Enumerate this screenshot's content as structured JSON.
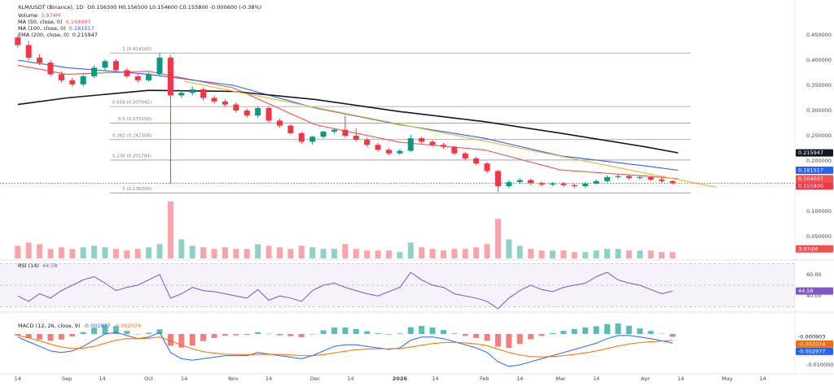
{
  "chart_data": [
    {
      "type": "candlestick",
      "title": "XLM/USDT (Binance), 1D",
      "ohlc": "O0.156300 H0.156500 L0.154600 C0.155800 -0.000600 (-0.38%)",
      "x": [
        0,
        4,
        8,
        12,
        16,
        20,
        24,
        28,
        32,
        36,
        40,
        44,
        48,
        52,
        56,
        60,
        64,
        68,
        72,
        76,
        80,
        84,
        88,
        92,
        96,
        100,
        104,
        108,
        112,
        116,
        120,
        124,
        128,
        132,
        136,
        140,
        144,
        148,
        152,
        156,
        160,
        164,
        168,
        172,
        176,
        180,
        184,
        188,
        192,
        196,
        200,
        204,
        208,
        212,
        216,
        220,
        224,
        228,
        232,
        236,
        240
      ],
      "open": [
        0.445,
        0.43,
        0.405,
        0.395,
        0.372,
        0.36,
        0.352,
        0.368,
        0.385,
        0.398,
        0.38,
        0.368,
        0.36,
        0.372,
        0.405,
        0.33,
        0.335,
        0.342,
        0.325,
        0.318,
        0.312,
        0.3,
        0.29,
        0.305,
        0.28,
        0.27,
        0.255,
        0.238,
        0.248,
        0.258,
        0.262,
        0.25,
        0.242,
        0.232,
        0.222,
        0.215,
        0.22,
        0.245,
        0.238,
        0.232,
        0.228,
        0.215,
        0.205,
        0.195,
        0.18,
        0.15,
        0.158,
        0.162,
        0.156,
        0.153,
        0.155,
        0.152,
        0.15,
        0.155,
        0.16,
        0.168,
        0.17,
        0.166,
        0.168,
        0.163,
        0.16
      ],
      "high": [
        0.448,
        0.438,
        0.412,
        0.4,
        0.378,
        0.365,
        0.372,
        0.39,
        0.402,
        0.402,
        0.384,
        0.372,
        0.376,
        0.414,
        0.41,
        0.34,
        0.348,
        0.346,
        0.33,
        0.322,
        0.316,
        0.304,
        0.308,
        0.308,
        0.284,
        0.273,
        0.258,
        0.25,
        0.26,
        0.264,
        0.29,
        0.265,
        0.246,
        0.236,
        0.226,
        0.224,
        0.252,
        0.248,
        0.242,
        0.236,
        0.23,
        0.218,
        0.208,
        0.198,
        0.182,
        0.162,
        0.166,
        0.165,
        0.16,
        0.158,
        0.158,
        0.155,
        0.158,
        0.163,
        0.171,
        0.174,
        0.172,
        0.171,
        0.17,
        0.166,
        0.162
      ],
      "low": [
        0.425,
        0.4,
        0.39,
        0.368,
        0.355,
        0.347,
        0.348,
        0.364,
        0.38,
        0.376,
        0.364,
        0.355,
        0.357,
        0.368,
        0.155,
        0.325,
        0.33,
        0.32,
        0.314,
        0.308,
        0.296,
        0.286,
        0.286,
        0.276,
        0.266,
        0.252,
        0.234,
        0.232,
        0.244,
        0.254,
        0.246,
        0.238,
        0.228,
        0.218,
        0.211,
        0.212,
        0.217,
        0.234,
        0.229,
        0.224,
        0.212,
        0.202,
        0.192,
        0.176,
        0.138,
        0.146,
        0.154,
        0.152,
        0.149,
        0.15,
        0.148,
        0.146,
        0.147,
        0.153,
        0.157,
        0.164,
        0.163,
        0.163,
        0.16,
        0.157,
        0.153
      ],
      "close": [
        0.43,
        0.405,
        0.395,
        0.372,
        0.36,
        0.352,
        0.368,
        0.385,
        0.398,
        0.38,
        0.368,
        0.36,
        0.372,
        0.405,
        0.33,
        0.335,
        0.342,
        0.325,
        0.318,
        0.312,
        0.3,
        0.29,
        0.305,
        0.28,
        0.27,
        0.255,
        0.238,
        0.248,
        0.258,
        0.262,
        0.25,
        0.242,
        0.232,
        0.222,
        0.215,
        0.22,
        0.245,
        0.238,
        0.232,
        0.228,
        0.215,
        0.205,
        0.195,
        0.18,
        0.15,
        0.158,
        0.162,
        0.156,
        0.153,
        0.155,
        0.152,
        0.15,
        0.155,
        0.16,
        0.168,
        0.17,
        0.166,
        0.168,
        0.163,
        0.16,
        0.1558
      ],
      "up_color": "#089981",
      "down_color": "#f23645",
      "series": [
        {
          "name": "MA (50, close, 0)",
          "color": "#ef5350",
          "x": [
            0,
            18,
            48,
            79,
            109,
            140,
            171,
            199,
            230,
            242
          ],
          "values": [
            0.39,
            0.372,
            0.378,
            0.345,
            0.272,
            0.237,
            0.222,
            0.182,
            0.17,
            0.164697
          ]
        },
        {
          "name": "MA (100, close, 0)",
          "color": "#2962ff",
          "x": [
            0,
            18,
            48,
            79,
            109,
            140,
            171,
            199,
            230,
            242
          ],
          "values": [
            0.4,
            0.385,
            0.372,
            0.35,
            0.305,
            0.272,
            0.245,
            0.21,
            0.19,
            0.181517
          ]
        },
        {
          "name": "EMA (200, close, 0)",
          "color": "#131722",
          "x": [
            0,
            18,
            48,
            79,
            109,
            140,
            171,
            199,
            230,
            242
          ],
          "values": [
            0.312,
            0.325,
            0.34,
            0.338,
            0.322,
            0.298,
            0.278,
            0.255,
            0.228,
            0.215947
          ]
        }
      ],
      "trend_line": {
        "color": "#f0b429",
        "x": [
          61,
          256
        ],
        "values": [
          0.358,
          0.148
        ]
      },
      "fib_levels": [
        {
          "value": 0.4141,
          "label": "1 (0.414100)"
        },
        {
          "value": 0.307942,
          "label": "0.618 (0.307942)"
        },
        {
          "value": 0.27515,
          "label": "0.5 (0.275150)"
        },
        {
          "value": 0.242358,
          "label": "0.382 (0.242358)"
        },
        {
          "value": 0.201784,
          "label": "0.236 (0.201784)"
        },
        {
          "value": 0.1362,
          "label": "0 (0.136200)"
        }
      ],
      "price_badge": {
        "value": 0.1558,
        "label": "0.155800"
      },
      "xlim": [
        -6.5,
        284.5
      ],
      "xticks": [
        {
          "value": 0,
          "label": "14"
        },
        {
          "value": 18,
          "label": "Sep"
        },
        {
          "value": 31,
          "label": "14"
        },
        {
          "value": 48,
          "label": "Oct"
        },
        {
          "value": 61,
          "label": "14"
        },
        {
          "value": 79,
          "label": "Nov"
        },
        {
          "value": 92,
          "label": "14"
        },
        {
          "value": 109,
          "label": "Dec"
        },
        {
          "value": 122,
          "label": "14"
        },
        {
          "value": 140,
          "label": "2026"
        },
        {
          "value": 153,
          "label": "14"
        },
        {
          "value": 171,
          "label": "Feb"
        },
        {
          "value": 184,
          "label": "14"
        },
        {
          "value": 199,
          "label": "Mar"
        },
        {
          "value": 212,
          "label": "14"
        },
        {
          "value": 230,
          "label": "Apr"
        },
        {
          "value": 243,
          "label": "14"
        },
        {
          "value": 260,
          "label": "May"
        },
        {
          "value": 273,
          "label": "14"
        }
      ],
      "ylim": [
        0.0065,
        0.471
      ],
      "yticks": [
        {
          "value": 0.45,
          "label": "0.450000"
        },
        {
          "value": 0.4,
          "label": "0.400000"
        },
        {
          "value": 0.35,
          "label": "0.350000"
        },
        {
          "value": 0.3,
          "label": "0.300000"
        },
        {
          "value": 0.25,
          "label": "0.250000"
        },
        {
          "value": 0.2,
          "label": "0.200000"
        },
        {
          "value": 0.1,
          "label": "0.100000"
        },
        {
          "value": 0.05,
          "label": "0.050000"
        }
      ]
    },
    {
      "type": "bar",
      "name": "Volume",
      "color": "#ef5350",
      "x": [
        0,
        4,
        8,
        12,
        16,
        20,
        24,
        28,
        32,
        36,
        40,
        44,
        48,
        52,
        56,
        60,
        64,
        68,
        72,
        76,
        80,
        84,
        88,
        92,
        96,
        100,
        104,
        108,
        112,
        116,
        120,
        124,
        128,
        132,
        136,
        140,
        144,
        148,
        152,
        156,
        160,
        164,
        168,
        172,
        176,
        180,
        184,
        188,
        192,
        196,
        200,
        204,
        208,
        212,
        216,
        220,
        224,
        228,
        232,
        236,
        240
      ],
      "values": [
        8,
        10,
        9,
        6,
        7,
        6,
        7,
        8,
        7,
        6,
        5,
        6,
        7,
        9,
        36,
        12,
        8,
        7,
        6,
        7,
        6,
        6,
        9,
        8,
        7,
        6,
        8,
        7,
        6,
        6,
        9,
        6,
        5,
        5,
        5,
        4,
        10,
        7,
        6,
        5,
        6,
        6,
        7,
        9,
        25,
        12,
        8,
        6,
        5,
        5,
        5,
        4,
        4,
        5,
        6,
        6,
        5,
        5,
        5,
        4,
        3.974
      ],
      "value_labels": [
        null,
        null,
        null,
        null,
        null,
        null,
        null,
        null,
        null,
        null,
        null,
        null,
        null,
        null,
        null,
        null,
        null,
        null,
        null,
        null,
        null,
        null,
        null,
        null,
        null,
        null,
        null,
        null,
        null,
        null,
        null,
        null,
        null,
        null,
        null,
        null,
        null,
        null,
        null,
        null,
        null,
        null,
        null,
        null,
        null,
        null,
        null,
        null,
        null,
        null,
        null,
        null,
        null,
        null,
        null,
        null,
        null,
        null,
        null,
        null,
        "3.974M"
      ],
      "ylim": [
        0,
        40
      ]
    },
    {
      "type": "line",
      "title": "RSI (14)",
      "color": "#7e57c2",
      "x": [
        0,
        4,
        8,
        12,
        16,
        20,
        24,
        28,
        32,
        36,
        40,
        44,
        48,
        52,
        56,
        60,
        64,
        68,
        72,
        76,
        80,
        84,
        88,
        92,
        96,
        100,
        104,
        108,
        112,
        116,
        120,
        124,
        128,
        132,
        136,
        140,
        144,
        148,
        152,
        156,
        160,
        164,
        168,
        172,
        176,
        180,
        184,
        188,
        192,
        196,
        200,
        204,
        208,
        212,
        216,
        220,
        224,
        228,
        232,
        236,
        240
      ],
      "values": [
        40,
        35,
        42,
        38,
        45,
        50,
        55,
        58,
        52,
        45,
        48,
        50,
        55,
        60,
        38,
        42,
        48,
        45,
        44,
        42,
        40,
        38,
        46,
        36,
        40,
        38,
        35,
        45,
        50,
        52,
        48,
        45,
        42,
        40,
        44,
        48,
        62,
        55,
        50,
        48,
        42,
        40,
        38,
        35,
        28,
        38,
        45,
        50,
        46,
        44,
        48,
        50,
        52,
        58,
        62,
        55,
        52,
        50,
        46,
        42,
        44.58
      ],
      "levels": [
        70,
        50,
        30
      ],
      "ylim": [
        28,
        72
      ],
      "yticks": [
        {
          "value": 60,
          "label": "60.00"
        },
        {
          "value": 40,
          "label": "40.00"
        }
      ]
    },
    {
      "type": "macd",
      "title": "MACD (12, 26, close, 9)",
      "x": [
        0,
        4,
        8,
        12,
        16,
        20,
        24,
        28,
        32,
        36,
        40,
        44,
        48,
        52,
        56,
        60,
        64,
        68,
        72,
        76,
        80,
        84,
        88,
        92,
        96,
        100,
        104,
        108,
        112,
        116,
        120,
        124,
        128,
        132,
        136,
        140,
        144,
        148,
        152,
        156,
        160,
        164,
        168,
        172,
        176,
        180,
        184,
        188,
        192,
        196,
        200,
        204,
        208,
        212,
        216,
        220,
        224,
        228,
        232,
        236,
        240
      ],
      "histogram": [
        -0.0005,
        -0.0013,
        -0.0018,
        -0.0022,
        -0.0018,
        -0.0008,
        0.0006,
        0.002,
        0.003,
        0.0025,
        0.001,
        0,
        0.0004,
        0.0015,
        -0.0038,
        -0.0044,
        -0.0037,
        -0.0023,
        -0.0013,
        -0.0005,
        -0.0004,
        -0.0003,
        0.0006,
        0.0001,
        -0.0004,
        -0.0007,
        -0.001,
        0,
        0.0012,
        0.0021,
        0.0021,
        0.0016,
        0.0009,
        0.0003,
        -0.0002,
        0.0002,
        0.0022,
        0.0026,
        0.0021,
        0.0013,
        0.0002,
        -0.0006,
        -0.0013,
        -0.0022,
        -0.0041,
        -0.0045,
        -0.0032,
        -0.0017,
        -0.0006,
        0.0003,
        0.001,
        0.0016,
        0.0021,
        0.0025,
        0.0032,
        0.0034,
        0.0027,
        0.0018,
        0.001,
        0.0001,
        -0.000903
      ],
      "histogram_colors": [
        "#26a69a",
        "#ef5350"
      ],
      "series": [
        {
          "color": "#2962ff",
          "values": [
            -0.001,
            -0.0025,
            -0.004,
            -0.0055,
            -0.006,
            -0.0055,
            -0.004,
            -0.002,
            0,
            0.0005,
            -0.0005,
            -0.0015,
            -0.001,
            0.0005,
            -0.006,
            -0.008,
            -0.0085,
            -0.008,
            -0.0075,
            -0.007,
            -0.007,
            -0.007,
            -0.006,
            -0.0065,
            -0.007,
            -0.0075,
            -0.008,
            -0.007,
            -0.0055,
            -0.004,
            -0.0035,
            -0.0035,
            -0.004,
            -0.0045,
            -0.005,
            -0.0045,
            -0.002,
            -0.001,
            -0.001,
            -0.0015,
            -0.0025,
            -0.0035,
            -0.0045,
            -0.006,
            -0.009,
            -0.0105,
            -0.01,
            -0.009,
            -0.008,
            -0.007,
            -0.006,
            -0.005,
            -0.004,
            -0.003,
            -0.0015,
            -0.0005,
            -0.0005,
            -0.001,
            -0.0015,
            -0.0022,
            -0.002977
          ]
        },
        {
          "color": "#ff6d00",
          "values": [
            -0.0005,
            -0.0012,
            -0.0022,
            -0.0033,
            -0.0042,
            -0.0047,
            -0.0046,
            -0.004,
            -0.003,
            -0.002,
            -0.0015,
            -0.0015,
            -0.0014,
            -0.001,
            -0.0022,
            -0.0036,
            -0.0048,
            -0.0057,
            -0.0062,
            -0.0065,
            -0.0066,
            -0.0067,
            -0.0066,
            -0.0066,
            -0.0066,
            -0.0068,
            -0.007,
            -0.007,
            -0.0067,
            -0.0061,
            -0.0056,
            -0.0051,
            -0.0049,
            -0.0048,
            -0.0048,
            -0.0047,
            -0.0042,
            -0.0036,
            -0.0031,
            -0.0028,
            -0.0027,
            -0.0029,
            -0.0032,
            -0.0038,
            -0.0049,
            -0.006,
            -0.0068,
            -0.0073,
            -0.0074,
            -0.0073,
            -0.007,
            -0.0066,
            -0.0061,
            -0.0055,
            -0.0047,
            -0.0039,
            -0.0032,
            -0.0028,
            -0.0025,
            -0.0023,
            -0.002074
          ]
        }
      ],
      "ylim": [
        -0.01237,
        0.00605
      ],
      "yticks": [
        {
          "value": -0.01,
          "label": "-0.010000"
        }
      ]
    }
  ]
}
